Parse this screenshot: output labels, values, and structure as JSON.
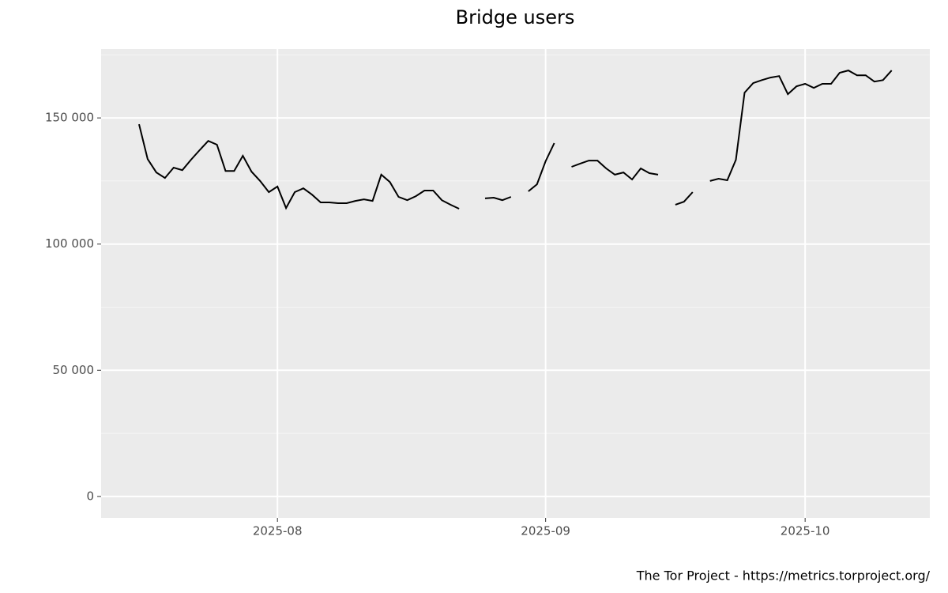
{
  "chart_data": {
    "type": "line",
    "title": "Bridge users",
    "caption": "The Tor Project - https://metrics.torproject.org/",
    "categories": [
      null,
      null,
      null,
      null,
      null,
      null,
      null,
      null,
      null,
      null,
      null,
      null,
      null,
      null,
      null,
      null,
      "2025-08",
      null,
      null,
      null,
      null,
      null,
      null,
      null,
      null,
      null,
      null,
      null,
      null,
      null,
      null,
      null,
      null,
      null,
      null,
      null,
      null,
      null,
      null,
      null,
      null,
      null,
      null,
      null,
      null,
      null,
      null,
      "2025-09",
      null,
      null,
      null,
      null,
      null,
      null,
      null,
      null,
      null,
      null,
      null,
      null,
      null,
      null,
      null,
      null,
      null,
      null,
      null,
      null,
      null,
      null,
      null,
      null,
      null,
      null,
      null,
      null,
      null,
      "2025-10",
      null,
      null,
      null,
      null,
      null,
      null,
      null,
      null,
      null,
      null
    ],
    "series": [
      {
        "name": "Bridge users",
        "color": "#000000",
        "values": [
          147500,
          133700,
          128400,
          126200,
          130300,
          129300,
          133400,
          137200,
          140900,
          139400,
          129000,
          129000,
          135000,
          128700,
          125000,
          120600,
          122800,
          114300,
          120600,
          122100,
          119600,
          116500,
          116500,
          116200,
          116200,
          117100,
          117700,
          117100,
          127500,
          124600,
          118700,
          117400,
          119000,
          121200,
          121200,
          117400,
          115600,
          114000,
          null,
          null,
          118100,
          118400,
          117400,
          118700,
          null,
          120900,
          123700,
          132800,
          140000,
          null,
          130600,
          131900,
          133100,
          133100,
          130000,
          127500,
          128400,
          125600,
          130000,
          128100,
          127500,
          null,
          115600,
          116800,
          120600,
          null,
          125000,
          125900,
          125300,
          133400,
          160000,
          163800,
          165000,
          166000,
          166600,
          159400,
          162500,
          163500,
          161900,
          163500,
          163500,
          167900,
          168800,
          166900,
          166900,
          164400,
          165000,
          168800
        ]
      }
    ],
    "ylim": [
      -8500,
      177300
    ],
    "yticks": [
      0,
      {
        "value": 50000,
        "label": "50 000"
      },
      {
        "value": 100000,
        "label": "100 000"
      },
      {
        "value": 150000,
        "label": "150 000"
      }
    ],
    "grid": true
  }
}
